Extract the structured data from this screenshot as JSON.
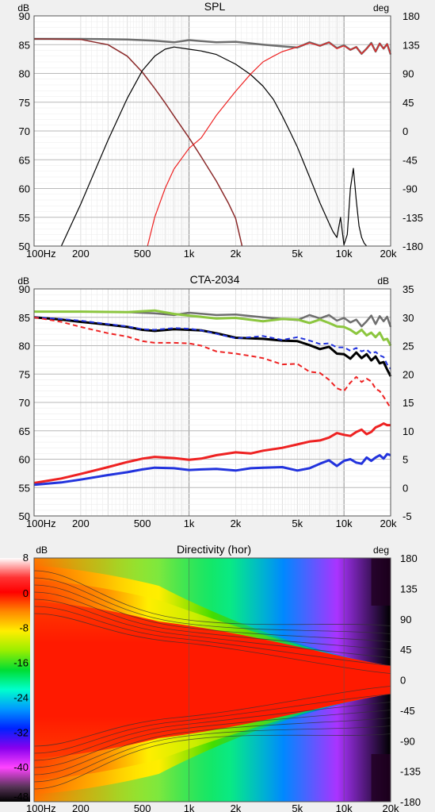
{
  "chart_data": [
    {
      "type": "line",
      "title": "SPL",
      "ylabel_left": "dB",
      "ylabel_right": "deg",
      "x_scale": "log",
      "xlim": [
        100,
        20000
      ],
      "ylim": [
        50,
        90
      ],
      "ylim_right": [
        -180,
        180
      ],
      "x_ticks": [
        "100Hz",
        "200",
        "500",
        "1k",
        "2k",
        "5k",
        "10k",
        "20k"
      ],
      "x_tick_values": [
        100,
        200,
        500,
        1000,
        2000,
        5000,
        10000,
        20000
      ],
      "y_ticks": [
        "50",
        "55",
        "60",
        "65",
        "70",
        "75",
        "80",
        "85",
        "90"
      ],
      "y_ticks_right": [
        "-180",
        "-135",
        "-90",
        "-45",
        "0",
        "45",
        "90",
        "135",
        "180"
      ],
      "series": [
        {
          "color": "#6e6e6e",
          "width": 2.5,
          "x": [
            100,
            200,
            400,
            600,
            800,
            1000,
            1500,
            2000,
            3000,
            4000,
            5000,
            6000,
            7000,
            8000,
            9000,
            10000,
            11000,
            12000,
            13000,
            14000,
            15000,
            16000,
            17000,
            18000,
            19000,
            20000
          ],
          "y": [
            86.0,
            86.0,
            85.9,
            85.7,
            85.4,
            85.8,
            85.4,
            85.5,
            85.0,
            84.7,
            84.5,
            85.4,
            84.8,
            85.4,
            84.4,
            84.9,
            84.1,
            84.6,
            83.4,
            84.3,
            85.3,
            83.8,
            85.2,
            84.3,
            85.1,
            83.3
          ]
        },
        {
          "color": "#8b2a2a",
          "width": 1.5,
          "x": [
            100,
            200,
            300,
            400,
            500,
            600,
            700,
            800,
            1000,
            1200,
            1500,
            1800,
            2000,
            2200
          ],
          "y": [
            86.0,
            85.9,
            85.0,
            83.0,
            80.2,
            77.4,
            74.9,
            72.6,
            68.8,
            65.5,
            61.3,
            57.4,
            54.8,
            50.0
          ]
        },
        {
          "color": "#000000",
          "width": 1.2,
          "x": [
            150,
            200,
            300,
            400,
            500,
            600,
            700,
            800,
            1000,
            1200,
            1500,
            2000,
            2500,
            3000,
            3500,
            4000,
            4500,
            5000,
            6000,
            7000,
            8000,
            8500,
            9000,
            9500,
            10000,
            10500,
            11000,
            11500,
            12000,
            12500,
            13000,
            13500,
            14000
          ],
          "y": [
            50.0,
            57.3,
            68.4,
            75.7,
            80.5,
            83.0,
            84.2,
            84.6,
            84.2,
            83.9,
            83.3,
            81.6,
            79.8,
            77.8,
            75.5,
            72.6,
            69.8,
            67.2,
            62.0,
            57.5,
            54.0,
            52.5,
            51.5,
            55.0,
            50.2,
            52.0,
            60.0,
            63.5,
            58.0,
            53.5,
            51.5,
            50.5,
            50.0
          ]
        },
        {
          "color": "#ee2222",
          "width": 1.2,
          "x": [
            540,
            600,
            700,
            800,
            1000,
            1200,
            1500,
            2000,
            2500,
            3000,
            3500,
            4000,
            4500,
            5000,
            6000,
            7000,
            8000,
            9000,
            10000,
            11000,
            12000,
            13000,
            14000,
            15000,
            16000,
            17000,
            18000,
            19000,
            20000
          ],
          "y": [
            50.0,
            55.0,
            60.0,
            63.4,
            67.0,
            68.8,
            72.7,
            76.9,
            79.9,
            82.0,
            83.0,
            83.8,
            84.2,
            84.6,
            85.3,
            84.8,
            85.4,
            84.3,
            84.8,
            84.1,
            84.6,
            83.4,
            84.3,
            85.2,
            83.8,
            85.2,
            84.3,
            85.1,
            83.3
          ]
        }
      ]
    },
    {
      "type": "line",
      "title": "CTA-2034",
      "ylabel_left": "dB",
      "ylabel_right": "dB",
      "x_scale": "log",
      "xlim": [
        100,
        20000
      ],
      "ylim": [
        50,
        90
      ],
      "ylim_right": [
        -5,
        35
      ],
      "x_ticks": [
        "100Hz",
        "200",
        "500",
        "1k",
        "2k",
        "5k",
        "10k",
        "20k"
      ],
      "x_tick_values": [
        100,
        200,
        500,
        1000,
        2000,
        5000,
        10000,
        20000
      ],
      "y_ticks": [
        "50",
        "55",
        "60",
        "65",
        "70",
        "75",
        "80",
        "85",
        "90"
      ],
      "y_ticks_right": [
        "-5",
        "0",
        "5",
        "10",
        "15",
        "20",
        "25",
        "30",
        "35"
      ],
      "series": [
        {
          "color": "#6e6e6e",
          "width": 2.5,
          "dash": "",
          "x": [
            100,
            200,
            400,
            600,
            800,
            1000,
            1500,
            2000,
            3000,
            4000,
            5000,
            6000,
            7000,
            8000,
            9000,
            10000,
            11000,
            12000,
            13000,
            14000,
            15000,
            16000,
            17000,
            18000,
            19000,
            20000
          ],
          "y": [
            86.0,
            86.0,
            85.9,
            85.7,
            85.4,
            85.8,
            85.4,
            85.5,
            85.0,
            84.7,
            84.5,
            85.4,
            84.8,
            85.4,
            84.4,
            84.9,
            84.1,
            84.6,
            83.4,
            84.3,
            85.3,
            83.8,
            85.2,
            84.3,
            85.1,
            83.3
          ]
        },
        {
          "color": "#8cc63f",
          "width": 3,
          "dash": "",
          "x": [
            100,
            200,
            400,
            600,
            800,
            1000,
            1500,
            2000,
            3000,
            4000,
            5000,
            6000,
            7000,
            8000,
            9000,
            10000,
            11000,
            12000,
            13000,
            14000,
            15000,
            16000,
            17000,
            18000,
            19000,
            20000
          ],
          "y": [
            86.0,
            86.0,
            85.9,
            86.2,
            85.6,
            85.3,
            84.8,
            84.9,
            84.3,
            84.7,
            84.6,
            84.0,
            84.6,
            84.0,
            83.4,
            83.3,
            82.8,
            82.1,
            82.8,
            81.8,
            82.3,
            81.5,
            82.3,
            81.0,
            81.2,
            80.0
          ]
        },
        {
          "color": "#000000",
          "width": 3,
          "dash": "",
          "x": [
            100,
            150,
            200,
            300,
            400,
            500,
            600,
            800,
            1000,
            1200,
            1500,
            2000,
            2500,
            3000,
            4000,
            5000,
            6000,
            7000,
            8000,
            9000,
            10000,
            11000,
            12000,
            13000,
            14000,
            15000,
            16000,
            17000,
            18000,
            19000,
            20000
          ],
          "y": [
            85.0,
            84.6,
            84.2,
            83.7,
            83.3,
            82.8,
            82.6,
            82.9,
            82.8,
            82.7,
            82.2,
            81.4,
            81.3,
            81.2,
            80.9,
            80.8,
            80.1,
            79.4,
            79.8,
            78.6,
            78.5,
            77.7,
            78.8,
            77.8,
            78.5,
            77.4,
            78.1,
            76.9,
            77.1,
            75.8,
            74.6
          ]
        },
        {
          "color": "#2233dd",
          "width": 2,
          "dash": "6,4",
          "x": [
            100,
            150,
            200,
            300,
            400,
            500,
            600,
            800,
            1000,
            1200,
            1500,
            2000,
            2500,
            3000,
            4000,
            5000,
            6000,
            7000,
            8000,
            9000,
            10000,
            11000,
            12000,
            13000,
            14000,
            15000,
            16000,
            17000,
            18000,
            19000,
            20000
          ],
          "y": [
            85.0,
            84.7,
            84.4,
            83.8,
            83.4,
            82.9,
            82.8,
            83.1,
            83.0,
            82.7,
            82.1,
            81.3,
            81.5,
            81.7,
            81.0,
            81.5,
            80.9,
            80.3,
            80.4,
            79.7,
            79.7,
            79.1,
            79.6,
            79.0,
            79.3,
            78.6,
            78.9,
            78.3,
            78.0,
            76.7,
            75.9
          ]
        },
        {
          "color": "#ee2222",
          "width": 2,
          "dash": "6,4",
          "x": [
            100,
            150,
            200,
            300,
            400,
            500,
            600,
            800,
            1000,
            1200,
            1500,
            2000,
            2500,
            3000,
            4000,
            5000,
            6000,
            7000,
            8000,
            9000,
            10000,
            11000,
            12000,
            13000,
            14000,
            15000,
            16000,
            17000,
            18000,
            19000,
            20000
          ],
          "y": [
            85.0,
            84.2,
            83.3,
            82.2,
            81.6,
            80.8,
            80.5,
            80.5,
            80.4,
            80.0,
            79.0,
            78.6,
            78.2,
            77.8,
            76.7,
            76.8,
            75.4,
            75.2,
            74.0,
            72.5,
            72.0,
            73.5,
            74.5,
            73.6,
            74.2,
            73.7,
            72.4,
            72.0,
            71.0,
            70.0,
            69.0
          ]
        },
        {
          "color": "#ee2222",
          "width": 3,
          "dash": "",
          "x": [
            100,
            150,
            200,
            300,
            400,
            500,
            600,
            800,
            1000,
            1200,
            1500,
            2000,
            2500,
            3000,
            4000,
            5000,
            6000,
            7000,
            8000,
            9000,
            10000,
            11000,
            12000,
            13000,
            14000,
            15000,
            16000,
            17000,
            18000,
            19000,
            20000
          ],
          "y": [
            55.8,
            56.6,
            57.4,
            58.6,
            59.5,
            60.1,
            60.4,
            60.2,
            59.9,
            60.1,
            60.7,
            61.2,
            61.0,
            61.5,
            62.0,
            62.6,
            63.1,
            63.3,
            63.8,
            64.6,
            64.3,
            64.1,
            64.8,
            65.2,
            64.4,
            64.8,
            65.6,
            65.9,
            66.3,
            66.0,
            66.0
          ]
        },
        {
          "color": "#2233dd",
          "width": 3,
          "dash": "",
          "x": [
            100,
            150,
            200,
            300,
            400,
            500,
            600,
            800,
            1000,
            1200,
            1500,
            2000,
            2500,
            3000,
            4000,
            5000,
            6000,
            7000,
            8000,
            9000,
            10000,
            11000,
            12000,
            13000,
            14000,
            15000,
            16000,
            17000,
            18000,
            19000,
            20000
          ],
          "y": [
            55.5,
            55.9,
            56.4,
            57.2,
            57.7,
            58.2,
            58.5,
            58.4,
            58.1,
            58.2,
            58.3,
            58.0,
            58.4,
            58.5,
            58.6,
            58.0,
            58.4,
            59.2,
            59.8,
            58.8,
            59.7,
            60.0,
            59.4,
            59.2,
            60.3,
            59.7,
            60.3,
            60.7,
            60.1,
            60.9,
            60.7
          ]
        }
      ]
    },
    {
      "type": "heatmap",
      "title": "Directivity (hor)",
      "ylabel_left": "dB",
      "ylabel_right": "deg",
      "x_scale": "log",
      "xlim": [
        100,
        20000
      ],
      "ylim_right": [
        -180,
        180
      ],
      "x_ticks": [
        "100Hz",
        "200",
        "500",
        "1k",
        "2k",
        "5k",
        "10k",
        "20k"
      ],
      "x_tick_values": [
        100,
        200,
        500,
        1000,
        2000,
        5000,
        10000,
        20000
      ],
      "y_ticks_right": [
        "-180",
        "-135",
        "-90",
        "-45",
        "0",
        "45",
        "90",
        "135",
        "180"
      ],
      "colorbar_ticks": [
        "8",
        "0",
        "-8",
        "-16",
        "-24",
        "-32",
        "-40",
        "-48"
      ],
      "colorbar_range": [
        -48,
        8
      ]
    }
  ]
}
